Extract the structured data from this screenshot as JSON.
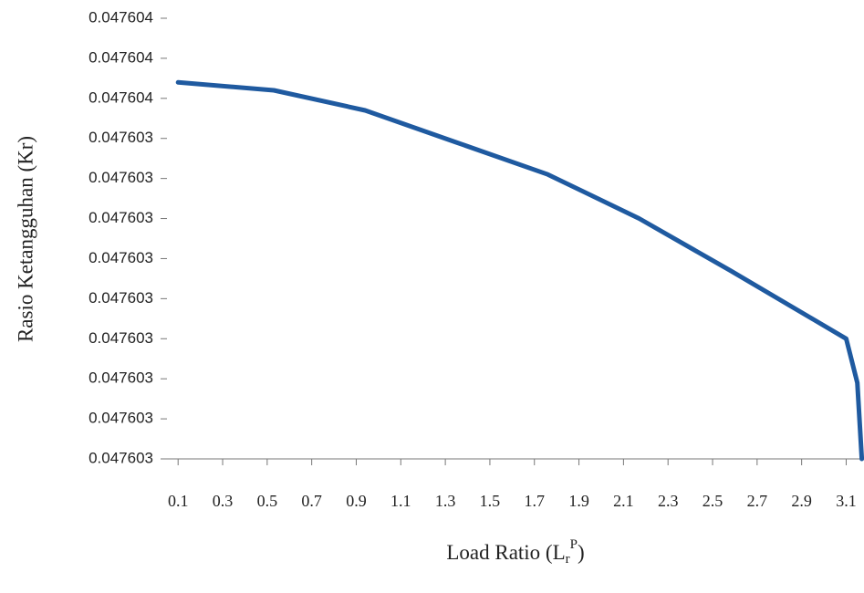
{
  "chart_data": {
    "type": "line",
    "ylabel": "Rasio Ketangguhan (Kr)",
    "xlabel": {
      "text": "Load Ratio (L",
      "sub": "r",
      "sup": "P",
      "close": ")"
    },
    "x": [
      0.1,
      0.53,
      0.94,
      1.35,
      1.76,
      2.17,
      2.58,
      3.1,
      3.15,
      3.17
    ],
    "series": [
      {
        "color": "#1f5aa0",
        "values": [
          0.04760359,
          0.04760357,
          0.04760352,
          0.04760344,
          0.04760336,
          0.04760325,
          0.04760312,
          0.04760295,
          0.04760284,
          0.04760265
        ]
      }
    ],
    "xlim": [
      0.05,
      3.18
    ],
    "xticks": [
      0.1,
      0.3,
      0.5,
      0.7,
      0.9,
      1.1,
      1.3,
      1.5,
      1.7,
      1.9,
      2.1,
      2.3,
      2.5,
      2.7,
      2.9,
      3.1
    ],
    "ylim": [
      0.04760265,
      0.04760375
    ],
    "yticks": [
      {
        "value": 0.04760265,
        "label": "0.047603"
      },
      {
        "value": 0.04760275,
        "label": "0.047603"
      },
      {
        "value": 0.04760285,
        "label": "0.047603"
      },
      {
        "value": 0.04760295,
        "label": "0.047603"
      },
      {
        "value": 0.04760305,
        "label": "0.047603"
      },
      {
        "value": 0.04760315,
        "label": "0.047603"
      },
      {
        "value": 0.04760325,
        "label": "0.047603"
      },
      {
        "value": 0.04760335,
        "label": "0.047603"
      },
      {
        "value": 0.04760345,
        "label": "0.047603"
      },
      {
        "value": 0.04760355,
        "label": "0.047604"
      },
      {
        "value": 0.04760365,
        "label": "0.047604"
      },
      {
        "value": 0.04760375,
        "label": "0.047604"
      }
    ],
    "grid": false
  }
}
